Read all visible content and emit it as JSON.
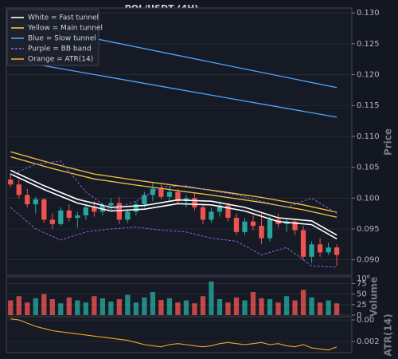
{
  "chart_data": {
    "type": "candlestick",
    "title": "POL/USDT (4H)",
    "xlim": [
      -0.5,
      40.8
    ],
    "colors": {
      "up": "#26a69a",
      "down": "#ef5350"
    },
    "grid": true,
    "legend": "upper left",
    "panels": {
      "price": {
        "label": "Price",
        "ylim": [
          0.0875,
          0.1308
        ],
        "yticks": [
          {
            "value": 0.09,
            "label": "0.090"
          },
          0.095,
          {
            "value": 0.1,
            "label": "0.100"
          },
          0.105,
          {
            "value": 0.11,
            "label": "0.110"
          },
          0.115,
          {
            "value": 0.12,
            "label": "0.120"
          },
          0.125,
          {
            "value": 0.13,
            "label": "0.130"
          }
        ]
      },
      "volume": {
        "label": "Volume",
        "offset_label": "10⁶",
        "ylim": [
          0,
          91
        ],
        "yticks": [
          0,
          25,
          50,
          75
        ]
      },
      "atr": {
        "label": "ATR(14)",
        "ylim": [
          0.00096,
          0.0043
        ],
        "yticks": [
          0.002,
          {
            "value": 0.004,
            "label": "0.00"
          }
        ]
      }
    },
    "ohlc": {
      "open": [
        0.103,
        0.1022,
        0.1005,
        0.099,
        0.0998,
        0.0965,
        0.0958,
        0.098,
        0.0968,
        0.0972,
        0.0985,
        0.0978,
        0.0988,
        0.0992,
        0.0965,
        0.0978,
        0.099,
        0.1005,
        0.1015,
        0.1002,
        0.101,
        0.0995,
        0.1,
        0.0985,
        0.0965,
        0.0978,
        0.0988,
        0.0968,
        0.0945,
        0.0962,
        0.0955,
        0.0935,
        0.0965,
        0.0958,
        0.0962,
        0.0948,
        0.0905,
        0.0925,
        0.0912,
        0.092
      ],
      "high": [
        0.104,
        0.103,
        0.1015,
        0.1002,
        0.1,
        0.0975,
        0.0985,
        0.099,
        0.0978,
        0.099,
        0.0995,
        0.0992,
        0.1,
        0.1002,
        0.0982,
        0.0995,
        0.101,
        0.1025,
        0.1022,
        0.1018,
        0.1015,
        0.1005,
        0.1008,
        0.099,
        0.0985,
        0.0995,
        0.0992,
        0.0975,
        0.0968,
        0.0972,
        0.0975,
        0.097,
        0.0975,
        0.0968,
        0.0966,
        0.0955,
        0.093,
        0.0935,
        0.0928,
        0.0925
      ],
      "low": [
        0.1018,
        0.1,
        0.0985,
        0.0975,
        0.096,
        0.095,
        0.0955,
        0.0962,
        0.0952,
        0.0965,
        0.097,
        0.0972,
        0.098,
        0.0958,
        0.096,
        0.0972,
        0.0985,
        0.0995,
        0.0998,
        0.0995,
        0.099,
        0.0985,
        0.098,
        0.0958,
        0.096,
        0.097,
        0.0962,
        0.094,
        0.094,
        0.0948,
        0.0925,
        0.093,
        0.0952,
        0.0945,
        0.094,
        0.09,
        0.0895,
        0.0905,
        0.0908,
        0.089
      ],
      "close": [
        0.1022,
        0.1005,
        0.099,
        0.0998,
        0.0965,
        0.0958,
        0.098,
        0.0968,
        0.0972,
        0.0985,
        0.0978,
        0.0988,
        0.0992,
        0.0965,
        0.0978,
        0.099,
        0.1005,
        0.1015,
        0.1002,
        0.101,
        0.0995,
        0.1,
        0.0985,
        0.0965,
        0.0978,
        0.0988,
        0.0968,
        0.0945,
        0.0962,
        0.0955,
        0.0935,
        0.0965,
        0.0958,
        0.0962,
        0.0948,
        0.0905,
        0.0925,
        0.0912,
        0.092,
        0.0908
      ]
    },
    "volume": [
      35,
      45,
      30,
      40,
      50,
      38,
      28,
      42,
      35,
      30,
      45,
      40,
      32,
      38,
      48,
      30,
      42,
      55,
      36,
      40,
      30,
      35,
      28,
      45,
      80,
      38,
      30,
      42,
      35,
      55,
      40,
      38,
      30,
      45,
      35,
      60,
      42,
      30,
      35,
      28
    ],
    "series": [
      {
        "name": "White = Fast tunnel",
        "color": "#ffffff",
        "width": 1.6,
        "panel": "price",
        "lines": [
          {
            "x": [
              0,
              4,
              8,
              12,
              16,
              20,
              24,
              28,
              32,
              36,
              39
            ],
            "values": [
              0.1045,
              0.102,
              0.0998,
              0.0985,
              0.0988,
              0.0997,
              0.0995,
              0.0985,
              0.0968,
              0.0963,
              0.094
            ]
          },
          {
            "x": [
              0,
              4,
              8,
              12,
              16,
              20,
              24,
              28,
              32,
              36,
              39
            ],
            "values": [
              0.1039,
              0.1014,
              0.0992,
              0.0979,
              0.0982,
              0.0991,
              0.0989,
              0.0979,
              0.0962,
              0.0957,
              0.0934
            ]
          }
        ]
      },
      {
        "name": "Yellow = Main tunnel",
        "color": "#f5c542",
        "width": 1.3,
        "panel": "price",
        "lines": [
          {
            "x": [
              0,
              5,
              10,
              15,
              20,
              25,
              30,
              35,
              39
            ],
            "values": [
              0.1075,
              0.1056,
              0.1039,
              0.1029,
              0.102,
              0.1011,
              0.1001,
              0.0989,
              0.0977
            ]
          },
          {
            "x": [
              0,
              5,
              10,
              15,
              20,
              25,
              30,
              35,
              39
            ],
            "values": [
              0.1067,
              0.1048,
              0.1031,
              0.1021,
              0.1012,
              0.1003,
              0.0993,
              0.0981,
              0.0969
            ]
          }
        ]
      },
      {
        "name": "Blue = Slow tunnel",
        "color": "#4da6ff",
        "width": 1.3,
        "panel": "price",
        "lines": [
          {
            "x": [
              0,
              39
            ],
            "values": [
              0.1286,
              0.1179
            ]
          },
          {
            "x": [
              0,
              39
            ],
            "values": [
              0.1224,
              0.1131
            ]
          }
        ]
      },
      {
        "name": "Purple = BB band",
        "color": "#8e6cf0",
        "width": 0.9,
        "dashed": true,
        "panel": "price",
        "lines": [
          {
            "x": [
              0,
              3,
              6,
              9,
              12,
              15,
              18,
              21,
              24,
              27,
              30,
              33,
              36,
              39
            ],
            "values": [
              0.1037,
              0.1055,
              0.106,
              0.101,
              0.098,
              0.0995,
              0.1018,
              0.102,
              0.1012,
              0.1005,
              0.0995,
              0.0985,
              0.1,
              0.0975
            ]
          },
          {
            "x": [
              0,
              3,
              6,
              9,
              12,
              15,
              18,
              21,
              24,
              27,
              30,
              33,
              36,
              39
            ],
            "values": [
              0.0985,
              0.095,
              0.0932,
              0.0945,
              0.095,
              0.0953,
              0.0948,
              0.0945,
              0.0935,
              0.093,
              0.0908,
              0.092,
              0.089,
              0.0888
            ]
          }
        ]
      },
      {
        "name": "Orange = ATR(14)",
        "color": "#f5a623",
        "width": 1.1,
        "panel": "atr",
        "lines": [
          {
            "x": [
              0,
              1,
              2,
              3,
              4,
              5,
              6,
              7,
              8,
              9,
              10,
              11,
              12,
              13,
              14,
              15,
              16,
              17,
              18,
              19,
              20,
              21,
              22,
              23,
              24,
              25,
              26,
              27,
              28,
              29,
              30,
              31,
              32,
              33,
              34,
              35,
              36,
              37,
              38,
              39
            ],
            "values": [
              0.0041,
              0.004,
              0.0037,
              0.0034,
              0.0032,
              0.003,
              0.0029,
              0.0028,
              0.0027,
              0.0026,
              0.0025,
              0.0024,
              0.0023,
              0.0022,
              0.0021,
              0.0019,
              0.0017,
              0.0016,
              0.0015,
              0.0017,
              0.0018,
              0.0017,
              0.0016,
              0.0015,
              0.0016,
              0.0018,
              0.0019,
              0.0018,
              0.0017,
              0.0018,
              0.0019,
              0.0017,
              0.0018,
              0.0016,
              0.0015,
              0.0017,
              0.0014,
              0.0013,
              0.0012,
              0.0015
            ]
          }
        ]
      }
    ]
  }
}
